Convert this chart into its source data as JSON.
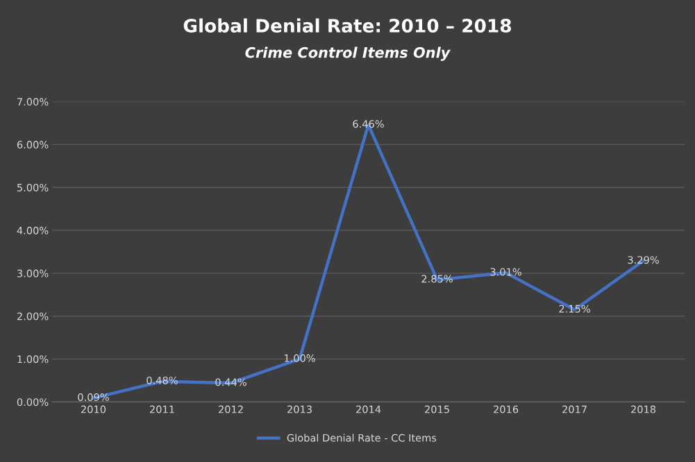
{
  "chart_data": {
    "type": "line",
    "title": "Global Denial Rate: 2010 – 2018",
    "subtitle": "Crime Control Items Only",
    "categories": [
      "2010",
      "2011",
      "2012",
      "2013",
      "2014",
      "2015",
      "2016",
      "2017",
      "2018"
    ],
    "series": [
      {
        "name": "Global Denial Rate - CC Items",
        "color": "#4472c4",
        "values": [
          0.09,
          0.48,
          0.44,
          1.0,
          6.46,
          2.85,
          3.01,
          2.15,
          3.29
        ],
        "value_labels": [
          "0.09%",
          "0.48%",
          "0.44%",
          "1.00%",
          "6.46%",
          "2.85%",
          "3.01%",
          "2.15%",
          "3.29%"
        ]
      }
    ],
    "ylim": [
      0,
      7
    ],
    "yticks": [
      {
        "value": 0,
        "label": "0.00%"
      },
      {
        "value": 1,
        "label": "1.00%"
      },
      {
        "value": 2,
        "label": "2.00%"
      },
      {
        "value": 3,
        "label": "3.00%"
      },
      {
        "value": 4,
        "label": "4.00%"
      },
      {
        "value": 5,
        "label": "5.00%"
      },
      {
        "value": 6,
        "label": "6.00%"
      },
      {
        "value": 7,
        "label": "7.00%"
      }
    ],
    "grid": "y",
    "legend": "bottom",
    "marker": "none",
    "line_style": "solid"
  }
}
